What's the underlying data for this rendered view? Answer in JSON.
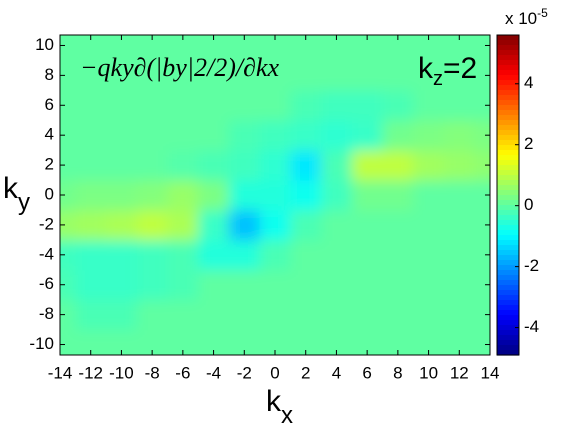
{
  "chart_data": {
    "type": "contour",
    "title": "−qky∂(|by|2/2)/∂kx",
    "annotation": {
      "base": "k",
      "sub": "z",
      "rest": "=2"
    },
    "x_label": {
      "base": "k",
      "sub": "x"
    },
    "y_label": {
      "base": "k",
      "sub": "y"
    },
    "colorbar_label": {
      "base": "x 10",
      "sup": "-5"
    },
    "colormap": "jet",
    "x": [
      -14,
      -12,
      -10,
      -8,
      -6,
      -4,
      -2,
      0,
      2,
      4,
      6,
      8,
      10,
      12,
      14
    ],
    "y": [
      -10,
      -8,
      -6,
      -4,
      -2,
      0,
      2,
      4,
      6,
      8,
      10
    ],
    "z": [
      [
        0,
        0,
        0,
        0,
        0,
        0,
        0,
        0,
        0,
        0,
        0,
        0,
        0,
        0,
        0
      ],
      [
        0,
        -0.2,
        -0.2,
        0,
        0,
        0,
        0,
        0,
        0,
        0,
        0,
        0,
        0,
        0,
        0
      ],
      [
        -0.2,
        -0.4,
        -0.4,
        -0.3,
        -0.2,
        0,
        0,
        0,
        0,
        0,
        0,
        0,
        0,
        0,
        0
      ],
      [
        -0.3,
        -0.4,
        -0.4,
        -0.3,
        -0.2,
        -0.6,
        -0.6,
        -0.2,
        0,
        0,
        0,
        0,
        0,
        0,
        0
      ],
      [
        0.6,
        0.7,
        0.8,
        1.0,
        0.8,
        -0.4,
        -1.6,
        -0.8,
        -0.2,
        0,
        0,
        0,
        0,
        0,
        0
      ],
      [
        0.2,
        0.3,
        0.3,
        0.4,
        0.6,
        0.3,
        -0.6,
        -0.6,
        -0.8,
        -0.3,
        0.2,
        0.2,
        0,
        0,
        0
      ],
      [
        0,
        0,
        0,
        0,
        -0.1,
        -0.2,
        -0.3,
        -0.5,
        -1.2,
        -0.2,
        1.0,
        1.0,
        0.7,
        0.6,
        0.5
      ],
      [
        0,
        0,
        0,
        0,
        0,
        0,
        -0.2,
        -0.3,
        -0.4,
        -0.5,
        -0.4,
        0.2,
        0.3,
        0.4,
        0.3
      ],
      [
        0,
        0,
        0,
        0,
        0,
        0,
        0,
        0,
        -0.2,
        -0.3,
        -0.3,
        -0.2,
        0,
        0,
        0
      ],
      [
        0,
        0,
        0,
        0,
        0,
        0,
        0,
        0,
        0,
        0,
        0,
        0,
        0,
        0,
        0
      ],
      [
        0,
        0,
        0,
        0,
        0,
        0,
        0,
        0,
        0,
        0,
        0,
        0,
        0,
        0,
        0
      ]
    ],
    "xlim": [
      -14,
      14
    ],
    "ylim": [
      -10.7,
      10.7
    ],
    "xticks": [
      -14,
      -12,
      -10,
      -8,
      -6,
      -4,
      -2,
      0,
      2,
      4,
      6,
      8,
      10,
      12,
      14
    ],
    "yticks": [
      -10,
      -8,
      -6,
      -4,
      -2,
      0,
      2,
      4,
      6,
      8,
      10
    ],
    "clim": [
      -4.9,
      5.6
    ],
    "cticks": [
      -4,
      -2,
      0,
      2,
      4
    ]
  }
}
